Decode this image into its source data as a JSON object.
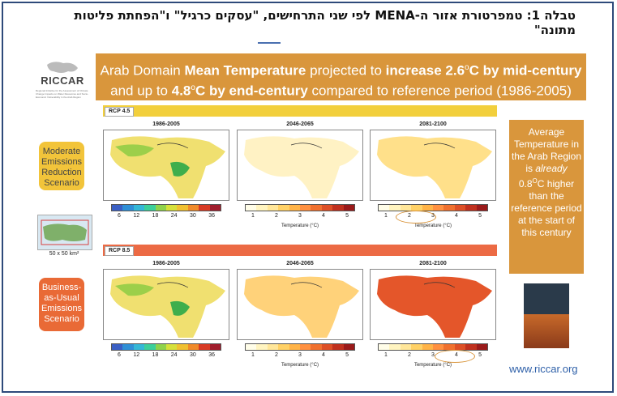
{
  "heading": "טבלה 1: טמפרטורת אזור ה-MENA לפי שני התרחישים, \"עסקים כרגיל\" ו\"הפחתת פליטות מתונה\"",
  "logo": {
    "name": "RICCAR",
    "tagline": "Regional Initiative for the Assessment of Climate Change Impacts on Water Resources and Socio-Economic Vulnerability in the Arab Region"
  },
  "banner": {
    "p1": "Arab Domain ",
    "b1": "Mean Temperature",
    "p2": " projected to ",
    "b2": "increase 2.6",
    "deg1": "o",
    "p3": "C by mid-century",
    "p4": "and up to ",
    "b3": "4.8",
    "deg2": "o",
    "b4": "C by end-century",
    "p5": " compared to reference period (1986-2005)"
  },
  "rcp45": {
    "label": "RCP 4.5",
    "color": "#f2cf3c"
  },
  "rcp85": {
    "label": "RCP 8.5",
    "color": "#ec6a44"
  },
  "periods": [
    "1986-2005",
    "2046-2065",
    "2081-2100"
  ],
  "abs_scale": {
    "ticks": [
      "6",
      "12",
      "18",
      "24",
      "30",
      "36"
    ],
    "colors": [
      "#3a5fc4",
      "#2f8fd6",
      "#34b7d6",
      "#3ccf9a",
      "#8fd24a",
      "#d6e03a",
      "#f0c030",
      "#f08a2a",
      "#d83a24",
      "#a01c2c"
    ]
  },
  "anom_scale": {
    "ticks": [
      "1",
      "2",
      "3",
      "4",
      "5"
    ],
    "unit": "Temperature  (°C)",
    "colors": [
      "#fffde8",
      "#fff4c0",
      "#ffe699",
      "#ffd166",
      "#ffb347",
      "#ff9040",
      "#f0702e",
      "#dd4f26",
      "#c0301e",
      "#9a1a1a"
    ]
  },
  "scenarios": {
    "moderate": "Moderate Emissions Reduction Scenario",
    "business": "Business-as-Usual Emissions Scenario"
  },
  "grid_label": "50 x 50 km²",
  "rightbox": {
    "l1": "Average Temperature in the Arab Region is ",
    "italic": "already",
    "l2": "0.8",
    "deg": "O",
    "l3": "C higher than the reference period at the start of this century"
  },
  "url": "www.riccar.org",
  "map_tones": {
    "r45": [
      "#f0e070",
      "#fff2c4",
      "#ffe08a"
    ],
    "r85": [
      "#f0e070",
      "#ffd27a",
      "#e4562a"
    ]
  }
}
